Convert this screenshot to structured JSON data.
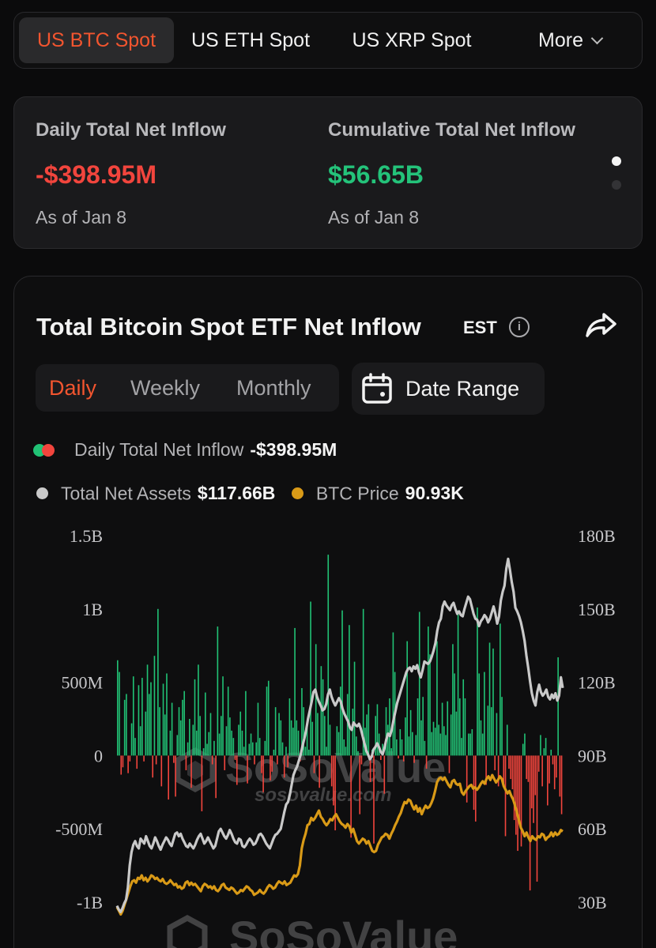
{
  "tabs": {
    "items": [
      {
        "label": "US BTC Spot",
        "active": true
      },
      {
        "label": "US ETH Spot",
        "active": false
      },
      {
        "label": "US XRP Spot",
        "active": false
      }
    ],
    "more_label": "More",
    "active_color": "#f2552f"
  },
  "summary": {
    "daily": {
      "label": "Daily Total Net Inflow",
      "value": "-$398.95M",
      "date": "As of Jan 8"
    },
    "cumulative": {
      "label": "Cumulative Total Net Inflow",
      "value": "$56.65B",
      "date": "As of Jan 8"
    },
    "pager": {
      "pages": 2,
      "current": 1
    }
  },
  "chart_card": {
    "title": "Total Bitcoin Spot ETF Net Inflow",
    "timezone": "EST",
    "info_icon": "info-icon",
    "share_icon": "share-icon",
    "periods": [
      "Daily",
      "Weekly",
      "Monthly"
    ],
    "active_period": "Daily",
    "date_range_label": "Date Range",
    "date_range_icon": "calendar-icon",
    "legend": {
      "inflow": {
        "label": "Daily Total Net Inflow",
        "value": "-$398.95M"
      },
      "assets": {
        "label": "Total Net Assets",
        "value": "$117.66B"
      },
      "price": {
        "label": "BTC Price",
        "value": "90.93K"
      }
    },
    "watermark": {
      "name": "SoSoValue",
      "url": "sosovalue.com"
    }
  },
  "colors": {
    "inflow_positive": "#21c275",
    "inflow_negative": "#f2453d",
    "net_assets_line": "#c9c9c9",
    "btc_price_line": "#d99a17",
    "background": "#0b0b0c"
  },
  "chart_data": {
    "type": "bar",
    "title": "Total Bitcoin Spot ETF Net Inflow",
    "y_left": {
      "ticks": [
        "1.5B",
        "1B",
        "500M",
        "0",
        "-500M",
        "-1B"
      ],
      "range": [
        -1000000000,
        1500000000
      ]
    },
    "y_right": {
      "ticks": [
        "180B",
        "150B",
        "120B",
        "90B",
        "60B",
        "30B"
      ],
      "range": [
        30000000000,
        180000000000
      ]
    },
    "grid": false,
    "series": [
      {
        "name": "Daily Total Net Inflow",
        "type": "bar",
        "axis": "left",
        "unit": "M USD",
        "values": [
          650,
          570,
          -130,
          -80,
          380,
          420,
          -120,
          -40,
          220,
          540,
          120,
          -90,
          480,
          200,
          530,
          -40,
          300,
          620,
          420,
          500,
          -150,
          680,
          -60,
          1000,
          330,
          -210,
          490,
          280,
          560,
          -300,
          170,
          360,
          -50,
          -280,
          140,
          330,
          240,
          380,
          440,
          -100,
          90,
          250,
          -220,
          210,
          520,
          170,
          620,
          270,
          -380,
          50,
          430,
          80,
          160,
          290,
          -60,
          100,
          -290,
          880,
          150,
          270,
          540,
          -100,
          200,
          470,
          260,
          170,
          120,
          -30,
          -200,
          210,
          300,
          170,
          60,
          440,
          -190,
          80,
          150,
          90,
          -60,
          90,
          360,
          120,
          -120,
          -250,
          100,
          470,
          510,
          -170,
          -110,
          40,
          330,
          -60,
          290,
          240,
          90,
          -150,
          60,
          -80,
          390,
          240,
          190,
          870,
          240,
          170,
          -40,
          460,
          330,
          60,
          210,
          40,
          1050,
          230,
          -120,
          760,
          290,
          -220,
          610,
          520,
          270,
          60,
          1370,
          210,
          -210,
          -340,
          -510,
          200,
          160,
          470,
          990,
          110,
          60,
          420,
          890,
          -560,
          320,
          640,
          130,
          30,
          -400,
          -60,
          1000,
          190,
          280,
          350,
          -180,
          40,
          -600,
          270,
          350,
          150,
          -30,
          80,
          -260,
          330,
          210,
          390,
          50,
          840,
          570,
          110,
          -20,
          180,
          110,
          -40,
          260,
          780,
          130,
          310,
          160,
          -50,
          140,
          390,
          980,
          240,
          400,
          100,
          -90,
          880,
          690,
          160,
          230,
          190,
          780,
          210,
          150,
          360,
          200,
          140,
          370,
          -120,
          280,
          760,
          560,
          300,
          990,
          390,
          120,
          520,
          390,
          -320,
          150,
          150,
          180,
          -370,
          -450,
          1010,
          560,
          240,
          150,
          570,
          -200,
          340,
          770,
          330,
          730,
          -100,
          290,
          -210,
          900,
          400,
          -190,
          -550,
          210,
          -90,
          -160,
          -230,
          -440,
          -540,
          -650,
          -470,
          -620,
          80,
          150,
          -160,
          -180,
          -920,
          -360,
          -460,
          -270,
          -860,
          -110,
          140,
          -210,
          50,
          120,
          -340,
          -190,
          40,
          -60,
          -230,
          -150,
          670,
          -280,
          -400
        ]
      },
      {
        "name": "Total Net Assets",
        "type": "line",
        "axis": "right",
        "unit": "B USD",
        "values": [
          28.5,
          27.0,
          26.0,
          27.5,
          29.5,
          31.0,
          36.0,
          45.0,
          50.5,
          53.5,
          55.0,
          53.0,
          52.0,
          56.0,
          55.0,
          54.0,
          57.0,
          55.0,
          53.0,
          52.0,
          54.0,
          56.5,
          55.0,
          53.0,
          51.5,
          53.5,
          55.0,
          56.5,
          55.5,
          54.0,
          53.0,
          55.5,
          58.0,
          58.5,
          57.0,
          58.0,
          56.0,
          54.5,
          53.0,
          52.5,
          54.0,
          53.0,
          52.0,
          53.5,
          55.5,
          57.0,
          58.0,
          56.0,
          54.0,
          55.0,
          56.5,
          55.0,
          53.5,
          52.0,
          53.0,
          56.0,
          59.0,
          60.0,
          58.5,
          57.0,
          56.0,
          57.5,
          59.5,
          58.0,
          56.0,
          54.5,
          54.0,
          56.0,
          55.5,
          53.0,
          52.5,
          53.5,
          55.0,
          56.0,
          55.0,
          53.5,
          54.0,
          55.5,
          57.5,
          58.0,
          57.0,
          55.5,
          54.0,
          53.0,
          52.0,
          54.0,
          56.0,
          57.5,
          58.0,
          59.0,
          60.0,
          63.5,
          67.0,
          70.0,
          71.0,
          74.0,
          78.0,
          82.0,
          84.0,
          85.5,
          88.0,
          90.5,
          94.0,
          97.0,
          100.5,
          105.0,
          108.5,
          112.0,
          116.0,
          117.0,
          114.0,
          112.0,
          110.5,
          108.5,
          109.0,
          111.0,
          115.0,
          117.0,
          114.0,
          112.0,
          110.5,
          112.0,
          113.5,
          112.0,
          109.0,
          107.0,
          105.5,
          104.0,
          101.5,
          100.5,
          103.5,
          102.5,
          102.0,
          103.0,
          101.0,
          98.0,
          95.0,
          92.0,
          90.5,
          88.5,
          89.5,
          92.5,
          93.5,
          95.0,
          93.5,
          91.5,
          90.5,
          93.0,
          96.5,
          99.0,
          98.0,
          100.5,
          104.5,
          108.0,
          111.5,
          114.0,
          116.5,
          119.0,
          121.5,
          124.0,
          125.5,
          126.0,
          124.5,
          126.5,
          125.5,
          127.0,
          124.0,
          122.0,
          125.0,
          128.5,
          128.0,
          127.5,
          128.5,
          130.5,
          133.0,
          136.0,
          141.0,
          144.5,
          146.0,
          151.0,
          153.0,
          151.5,
          150.5,
          149.5,
          151.5,
          152.5,
          150.0,
          148.0,
          149.0,
          147.5,
          147.0,
          150.0,
          152.5,
          155.0,
          154.0,
          151.0,
          148.0,
          146.0,
          145.5,
          143.0,
          145.0,
          146.0,
          147.5,
          146.5,
          144.5,
          146.0,
          148.5,
          151.0,
          148.0,
          144.0,
          147.0,
          153.5,
          157.0,
          159.5,
          166.5,
          170.5,
          166.0,
          161.0,
          157.0,
          150.5,
          149.0,
          147.0,
          144.5,
          141.0,
          137.0,
          131.0,
          126.0,
          120.5,
          115.5,
          112.5,
          110.5,
          116.0,
          119.0,
          116.0,
          114.5,
          115.5,
          117.0,
          114.0,
          113.0,
          115.0,
          113.5,
          115.5,
          112.5,
          114.5,
          122.0,
          117.66
        ]
      },
      {
        "name": "BTC Price",
        "type": "line",
        "axis": "right",
        "unit": "K USD",
        "values": [
          28.0,
          26.5,
          25.0,
          26.5,
          29.0,
          31.5,
          34.0,
          36.5,
          38.5,
          39.0,
          38.0,
          40.0,
          39.5,
          41.0,
          39.0,
          40.0,
          38.5,
          39.5,
          41.0,
          40.5,
          39.5,
          40.0,
          39.0,
          38.5,
          39.5,
          38.0,
          37.5,
          38.0,
          39.0,
          38.0,
          37.0,
          37.5,
          36.0,
          36.5,
          35.5,
          36.0,
          38.0,
          38.5,
          37.0,
          38.0,
          37.0,
          37.5,
          36.5,
          35.5,
          34.5,
          36.5,
          37.5,
          37.0,
          36.0,
          36.5,
          35.5,
          36.5,
          35.0,
          34.5,
          35.5,
          37.0,
          37.5,
          36.0,
          35.5,
          35.0,
          36.0,
          35.5,
          34.5,
          33.5,
          34.0,
          35.0,
          34.5,
          35.5,
          36.5,
          36.0,
          35.0,
          34.5,
          33.0,
          33.5,
          34.0,
          35.0,
          34.0,
          33.5,
          34.5,
          36.0,
          37.0,
          36.5,
          35.5,
          36.0,
          37.5,
          38.5,
          38.0,
          37.5,
          38.5,
          37.0,
          37.5,
          38.0,
          39.5,
          41.0,
          40.5,
          41.5,
          45.0,
          52.0,
          55.5,
          58.0,
          61.5,
          62.0,
          64.5,
          63.5,
          64.5,
          66.0,
          67.5,
          65.0,
          64.0,
          62.5,
          61.5,
          62.5,
          64.0,
          63.5,
          65.0,
          66.0,
          64.5,
          63.0,
          62.0,
          61.5,
          60.5,
          62.0,
          61.0,
          58.5,
          60.0,
          57.5,
          55.0,
          54.0,
          55.0,
          56.0,
          55.5,
          54.0,
          55.0,
          53.0,
          51.0,
          50.5,
          51.0,
          53.5,
          55.0,
          56.5,
          57.0,
          58.0,
          57.5,
          56.0,
          58.0,
          59.5,
          61.5,
          63.0,
          65.0,
          66.5,
          69.0,
          71.0,
          70.5,
          72.0,
          71.5,
          69.5,
          68.0,
          69.5,
          67.0,
          68.5,
          66.0,
          68.0,
          69.5,
          68.5,
          69.0,
          70.5,
          72.5,
          75.5,
          79.0,
          80.5,
          81.0,
          80.0,
          81.0,
          79.5,
          78.0,
          77.0,
          79.5,
          80.0,
          78.5,
          78.0,
          78.5,
          75.0,
          74.0,
          75.5,
          76.5,
          77.5,
          78.0,
          76.5,
          77.0,
          76.0,
          77.0,
          78.5,
          79.5,
          78.5,
          80.5,
          81.5,
          80.0,
          82.0,
          80.5,
          79.0,
          80.0,
          81.5,
          80.5,
          77.5,
          76.0,
          74.5,
          75.5,
          73.5,
          72.0,
          69.5,
          66.5,
          63.5,
          60.5,
          59.0,
          57.0,
          58.5,
          56.5,
          55.0,
          57.0,
          56.0,
          55.5,
          57.0,
          56.5,
          58.0,
          57.5,
          55.5,
          56.5,
          57.0,
          58.5,
          57.0,
          58.5,
          57.5,
          58.0,
          59.5,
          59.0,
          90.93
        ]
      }
    ]
  }
}
